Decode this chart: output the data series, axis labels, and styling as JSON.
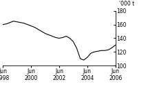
{
  "title": "",
  "ylabel": "'000 t",
  "ylim": [
    100,
    180
  ],
  "yticks": [
    100,
    120,
    140,
    160,
    180
  ],
  "x_labels": [
    "Jun\n1998",
    "Jun\n2000",
    "Jun\n2002",
    "Jun\n2004",
    "Jun\n2006"
  ],
  "x_positions": [
    0,
    24,
    48,
    72,
    96
  ],
  "line_color": "#000000",
  "background_color": "#ffffff",
  "data_x": [
    0,
    3,
    6,
    9,
    12,
    15,
    18,
    21,
    24,
    27,
    30,
    33,
    36,
    39,
    42,
    45,
    48,
    51,
    54,
    57,
    60,
    63,
    66,
    69,
    72,
    75,
    78,
    81,
    84,
    87,
    90,
    93,
    96
  ],
  "data_y": [
    160,
    161,
    163,
    165,
    164,
    163,
    162,
    160,
    158,
    156,
    153,
    150,
    147,
    145,
    143,
    141,
    140,
    141,
    143,
    140,
    135,
    125,
    110,
    108,
    112,
    118,
    120,
    121,
    122,
    122,
    123,
    126,
    130
  ],
  "ylabel_fontsize": 5.5,
  "tick_fontsize": 5.5,
  "linewidth": 0.8
}
